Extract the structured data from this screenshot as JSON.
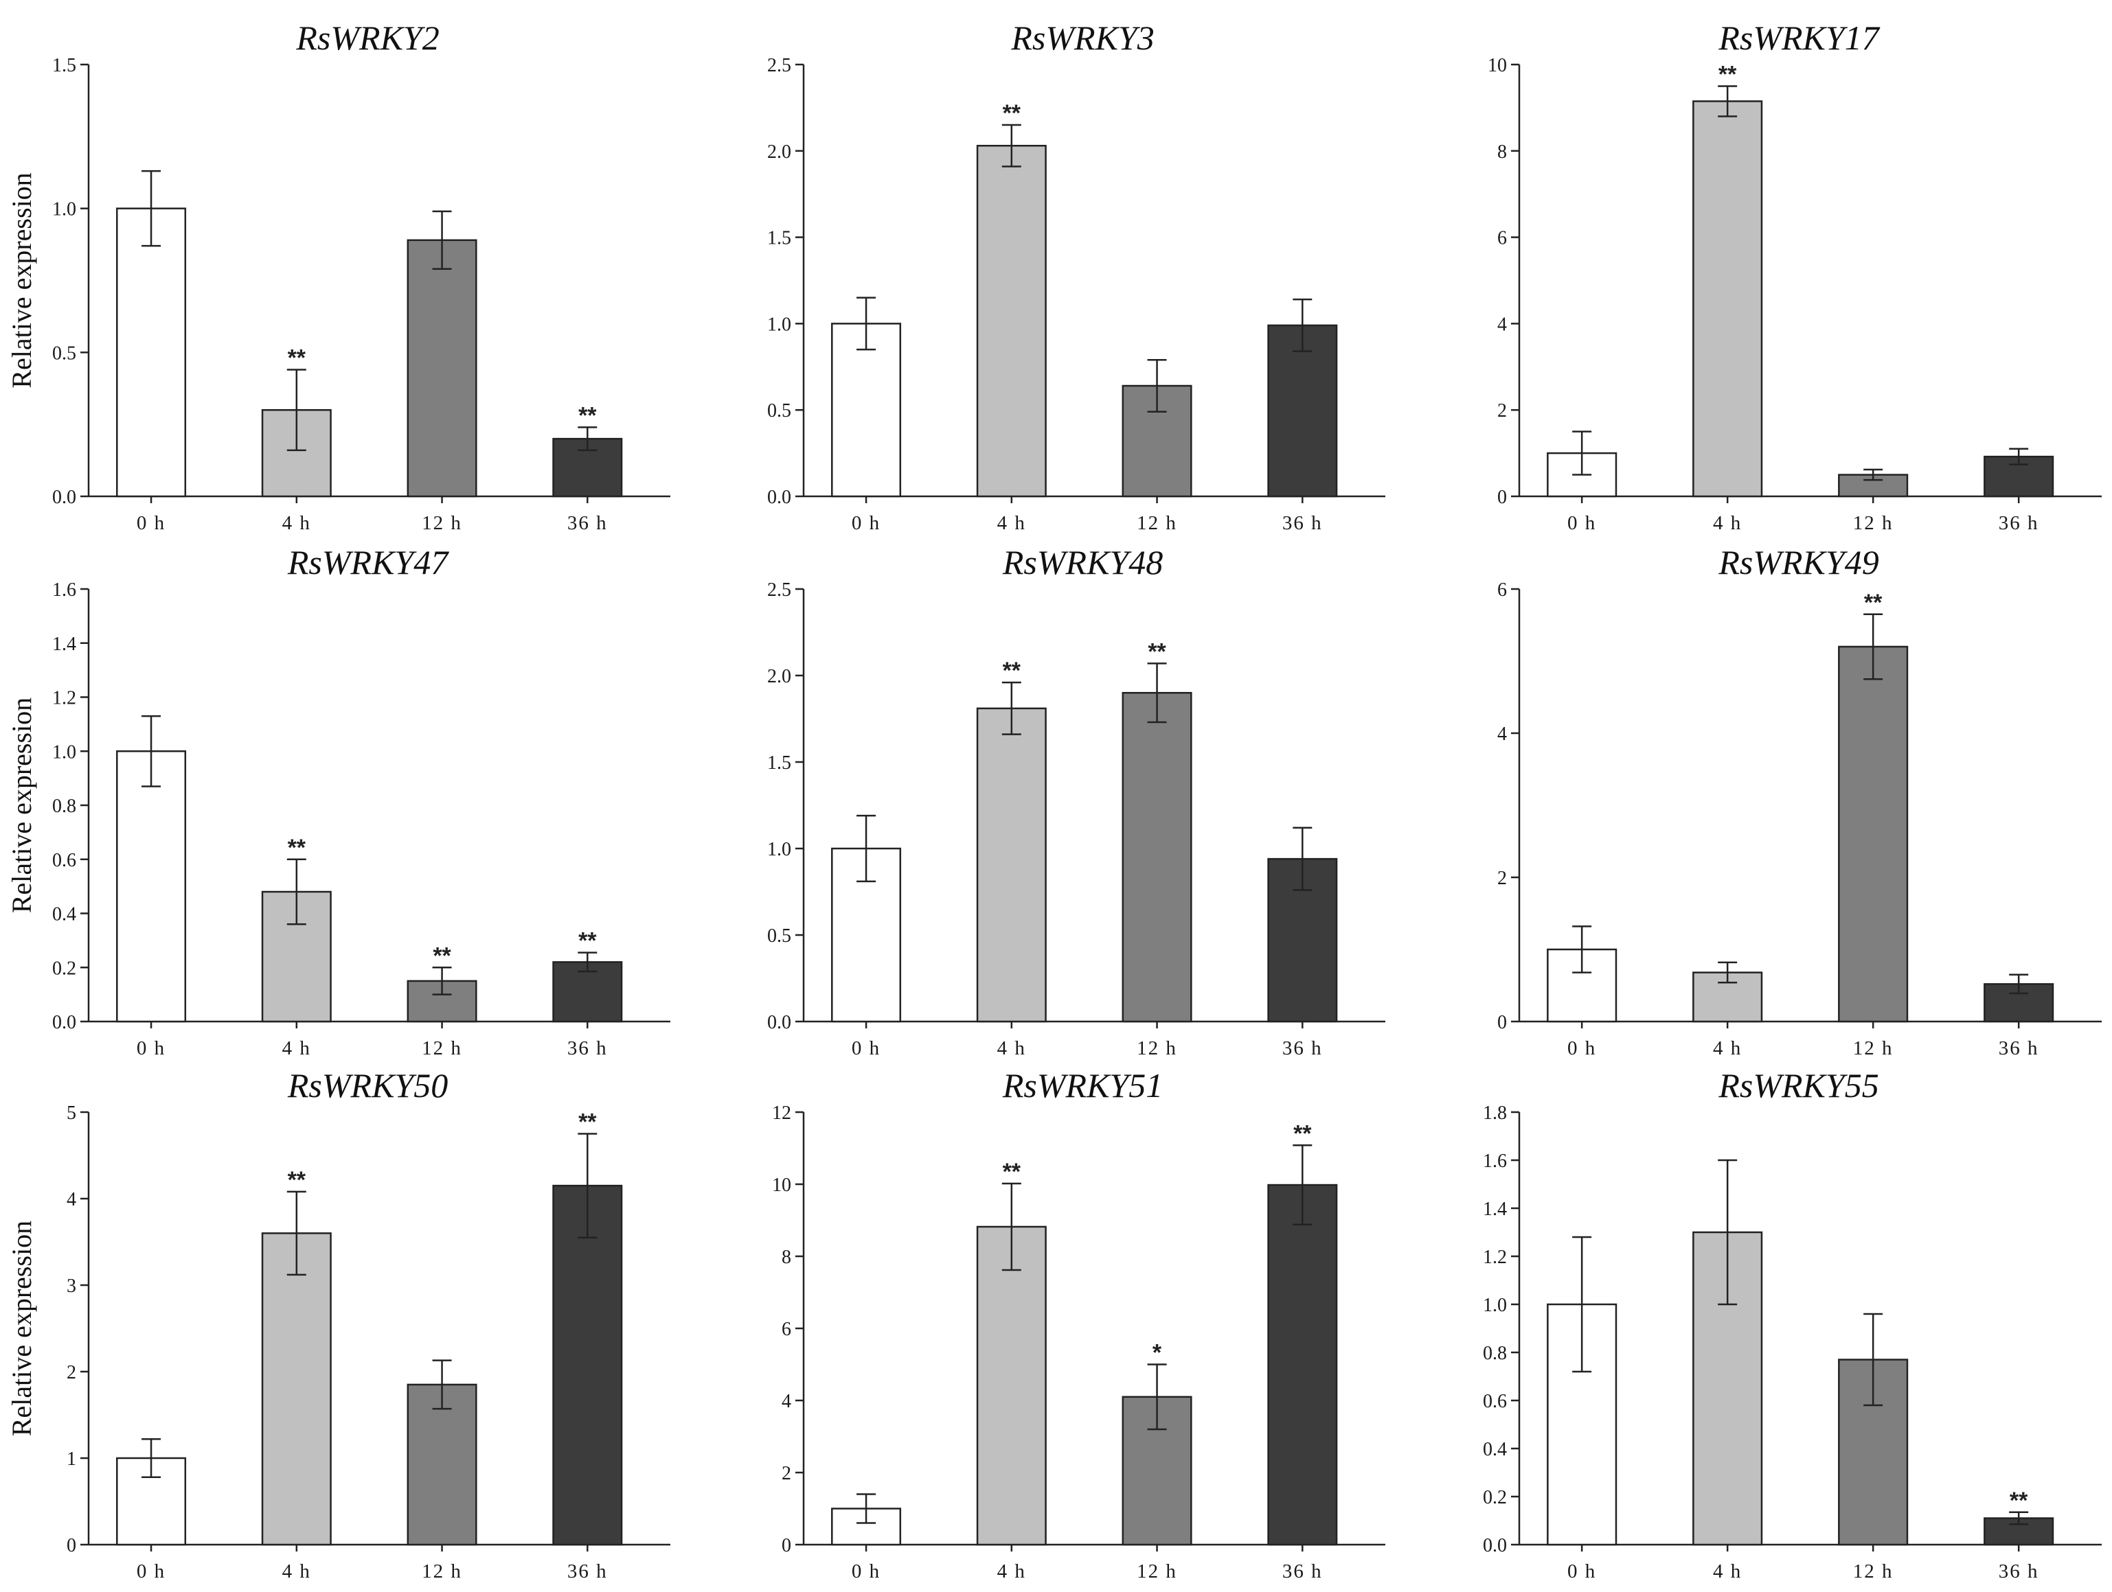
{
  "figure": {
    "ylabel": "Relative expression",
    "bar_colors": [
      "#ffffff",
      "#c0c0c0",
      "#7f7f7f",
      "#3c3c3c"
    ]
  },
  "chart_data": [
    {
      "type": "bar",
      "title": "RsWRKY2",
      "ylabel": "Relative expression",
      "ylim": [
        0,
        1.5
      ],
      "yticks": [
        "0.0",
        "0.5",
        "1.0",
        "1.5"
      ],
      "categories": [
        "0  h",
        "4  h",
        "12  h",
        "36  h"
      ],
      "values": [
        1.0,
        0.3,
        0.89,
        0.2
      ],
      "errors": [
        0.13,
        0.14,
        0.1,
        0.04
      ],
      "significance": [
        "",
        "**",
        "",
        "**"
      ]
    },
    {
      "type": "bar",
      "title": "RsWRKY3",
      "ylabel": "",
      "ylim": [
        0,
        2.5
      ],
      "yticks": [
        "0.0",
        "0.5",
        "1.0",
        "1.5",
        "2.0",
        "2.5"
      ],
      "categories": [
        "0  h",
        "4  h",
        "12  h",
        "36  h"
      ],
      "values": [
        1.0,
        2.03,
        0.64,
        0.99
      ],
      "errors": [
        0.15,
        0.12,
        0.15,
        0.15
      ],
      "significance": [
        "",
        "**",
        "",
        ""
      ]
    },
    {
      "type": "bar",
      "title": "RsWRKY17",
      "ylabel": "",
      "ylim": [
        0,
        10
      ],
      "yticks": [
        "0",
        "2",
        "4",
        "6",
        "8",
        "10"
      ],
      "categories": [
        "0  h",
        "4  h",
        "12  h",
        "36  h"
      ],
      "values": [
        1.0,
        9.15,
        0.5,
        0.92
      ],
      "errors": [
        0.5,
        0.35,
        0.12,
        0.18
      ],
      "significance": [
        "",
        "**",
        "",
        ""
      ]
    },
    {
      "type": "bar",
      "title": "RsWRKY47",
      "ylabel": "Relative expression",
      "ylim": [
        0,
        1.6
      ],
      "yticks": [
        "0.0",
        "0.2",
        "0.4",
        "0.6",
        "0.8",
        "1.0",
        "1.2",
        "1.4",
        "1.6"
      ],
      "categories": [
        "0  h",
        "4  h",
        "12  h",
        "36  h"
      ],
      "values": [
        1.0,
        0.48,
        0.15,
        0.22
      ],
      "errors": [
        0.13,
        0.12,
        0.05,
        0.035
      ],
      "significance": [
        "",
        "**",
        "**",
        "**"
      ]
    },
    {
      "type": "bar",
      "title": "RsWRKY48",
      "ylabel": "",
      "ylim": [
        0,
        2.5
      ],
      "yticks": [
        "0.0",
        "0.5",
        "1.0",
        "1.5",
        "2.0",
        "2.5"
      ],
      "categories": [
        "0  h",
        "4  h",
        "12  h",
        "36  h"
      ],
      "values": [
        1.0,
        1.81,
        1.9,
        0.94
      ],
      "errors": [
        0.19,
        0.15,
        0.17,
        0.18
      ],
      "significance": [
        "",
        "**",
        "**",
        ""
      ]
    },
    {
      "type": "bar",
      "title": "RsWRKY49",
      "ylabel": "",
      "ylim": [
        0,
        6
      ],
      "yticks": [
        "0",
        "2",
        "4",
        "6"
      ],
      "categories": [
        "0  h",
        "4  h",
        "12  h",
        "36  h"
      ],
      "values": [
        1.0,
        0.68,
        5.2,
        0.52
      ],
      "errors": [
        0.32,
        0.14,
        0.45,
        0.13
      ],
      "significance": [
        "",
        "",
        "**",
        ""
      ]
    },
    {
      "type": "bar",
      "title": "RsWRKY50",
      "ylabel": "Relative expression",
      "ylim": [
        0,
        5
      ],
      "yticks": [
        "0",
        "1",
        "2",
        "3",
        "4",
        "5"
      ],
      "categories": [
        "0  h",
        "4  h",
        "12  h",
        "36  h"
      ],
      "values": [
        1.0,
        3.6,
        1.85,
        4.15
      ],
      "errors": [
        0.22,
        0.48,
        0.28,
        0.6
      ],
      "significance": [
        "",
        "**",
        "",
        "**"
      ]
    },
    {
      "type": "bar",
      "title": "RsWRKY51",
      "ylabel": "",
      "ylim": [
        0,
        12
      ],
      "yticks": [
        "0",
        "2",
        "4",
        "6",
        "8",
        "10",
        "12"
      ],
      "categories": [
        "0  h",
        "4  h",
        "12  h",
        "36  h"
      ],
      "values": [
        1.0,
        8.82,
        4.1,
        9.98
      ],
      "errors": [
        0.4,
        1.2,
        0.9,
        1.1
      ],
      "significance": [
        "",
        "**",
        "*",
        "**"
      ]
    },
    {
      "type": "bar",
      "title": "RsWRKY55",
      "ylabel": "",
      "ylim": [
        0,
        1.8
      ],
      "yticks": [
        "0.0",
        "0.2",
        "0.4",
        "0.6",
        "0.8",
        "1.0",
        "1.2",
        "1.4",
        "1.6",
        "1.8"
      ],
      "categories": [
        "0  h",
        "4  h",
        "12  h",
        "36  h"
      ],
      "values": [
        1.0,
        1.3,
        0.77,
        0.11
      ],
      "errors": [
        0.28,
        0.3,
        0.19,
        0.025
      ],
      "significance": [
        "",
        "",
        "",
        "**"
      ]
    }
  ]
}
